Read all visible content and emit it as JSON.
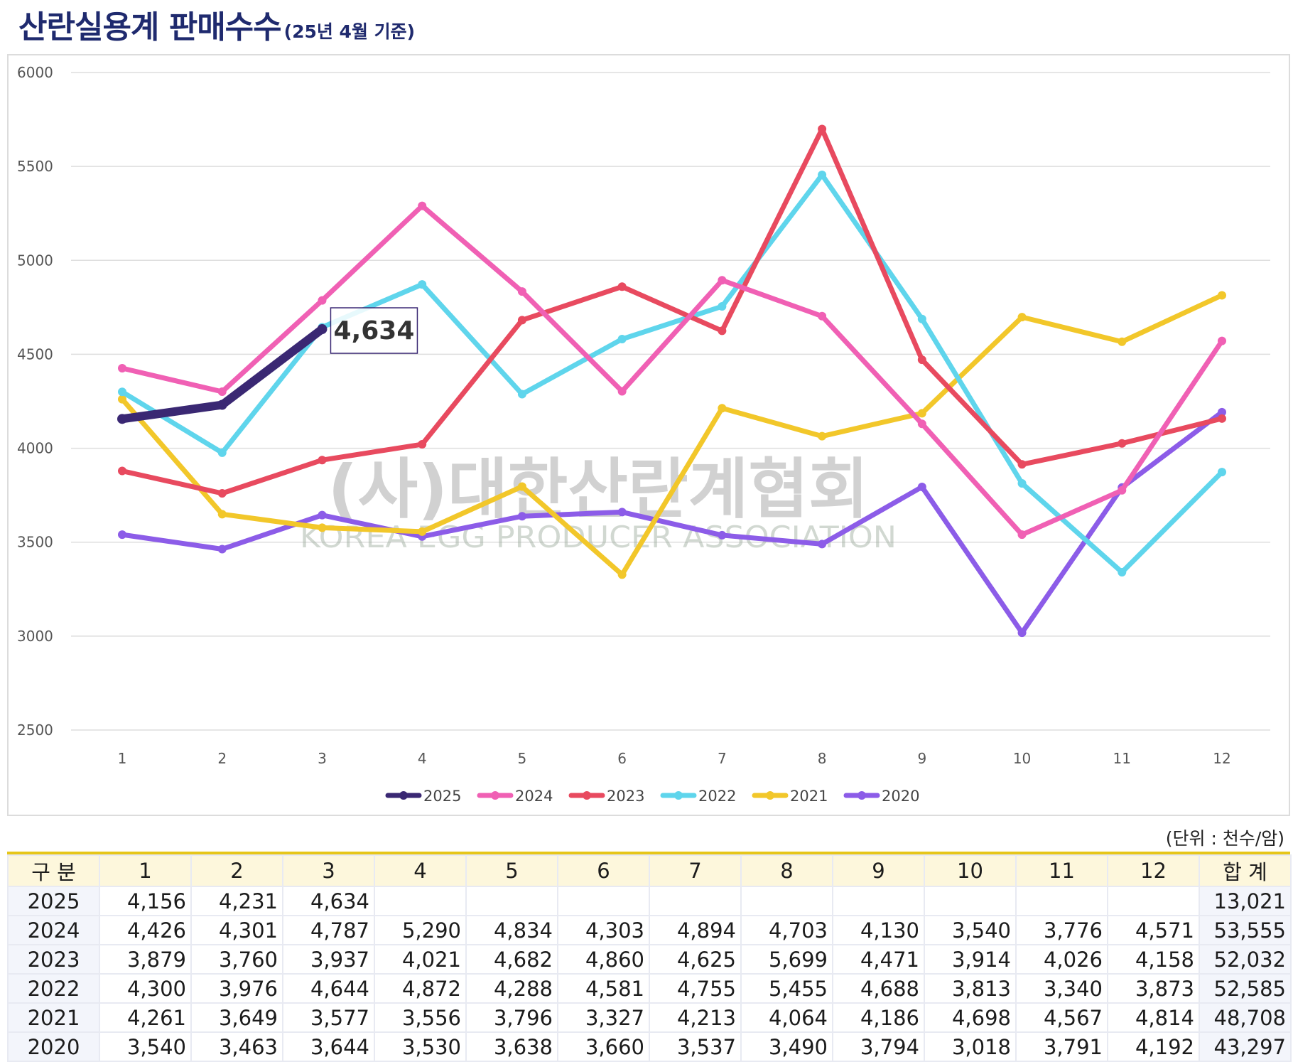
{
  "header": {
    "title": "산란실용계 판매수수",
    "subtitle": "(25년 4월 기준)"
  },
  "chart_data": {
    "type": "line",
    "title": "",
    "xlabel": "",
    "ylabel": "",
    "categories": [
      "1",
      "2",
      "3",
      "4",
      "5",
      "6",
      "7",
      "8",
      "9",
      "10",
      "11",
      "12"
    ],
    "ylim": [
      2500,
      6000
    ],
    "yticks": [
      2500,
      3000,
      3500,
      4000,
      4500,
      5000,
      5500,
      6000
    ],
    "grid": true,
    "legend_position": "bottom",
    "series": [
      {
        "name": "2025",
        "color": "#3a2873",
        "values": [
          4156,
          4231,
          4634,
          null,
          null,
          null,
          null,
          null,
          null,
          null,
          null,
          null
        ]
      },
      {
        "name": "2024",
        "color": "#f060b4",
        "values": [
          4426,
          4301,
          4787,
          5290,
          4834,
          4303,
          4894,
          4703,
          4130,
          3540,
          3776,
          4571
        ]
      },
      {
        "name": "2023",
        "color": "#e84a5f",
        "values": [
          3879,
          3760,
          3937,
          4021,
          4682,
          4860,
          4625,
          5699,
          4471,
          3914,
          4026,
          4158
        ]
      },
      {
        "name": "2022",
        "color": "#5fd5ec",
        "values": [
          4300,
          3976,
          4644,
          4872,
          4288,
          4581,
          4755,
          5455,
          4688,
          3813,
          3340,
          3873
        ]
      },
      {
        "name": "2021",
        "color": "#f2c72a",
        "values": [
          4261,
          3649,
          3577,
          3556,
          3796,
          3327,
          4213,
          4064,
          4186,
          4698,
          4567,
          4814
        ]
      },
      {
        "name": "2020",
        "color": "#8c5ce8",
        "values": [
          3540,
          3463,
          3644,
          3530,
          3638,
          3660,
          3537,
          3490,
          3794,
          3018,
          3791,
          4192
        ]
      }
    ],
    "annotation": {
      "series": "2025",
      "index": 2,
      "label": "4,634"
    },
    "watermark": {
      "text": "(사)대한산란계협회",
      "subtext": "KOREA EGG PRODUCER ASSOCIATION"
    }
  },
  "table": {
    "unit_note": "(단위 : 천수/암)",
    "headers": [
      "구 분",
      "1",
      "2",
      "3",
      "4",
      "5",
      "6",
      "7",
      "8",
      "9",
      "10",
      "11",
      "12",
      "합 계"
    ],
    "rows": [
      {
        "year": "2025",
        "values": [
          "4,156",
          "4,231",
          "4,634",
          "",
          "",
          "",
          "",
          "",
          "",
          "",
          "",
          ""
        ],
        "total": "13,021"
      },
      {
        "year": "2024",
        "values": [
          "4,426",
          "4,301",
          "4,787",
          "5,290",
          "4,834",
          "4,303",
          "4,894",
          "4,703",
          "4,130",
          "3,540",
          "3,776",
          "4,571"
        ],
        "total": "53,555"
      },
      {
        "year": "2023",
        "values": [
          "3,879",
          "3,760",
          "3,937",
          "4,021",
          "4,682",
          "4,860",
          "4,625",
          "5,699",
          "4,471",
          "3,914",
          "4,026",
          "4,158"
        ],
        "total": "52,032"
      },
      {
        "year": "2022",
        "values": [
          "4,300",
          "3,976",
          "4,644",
          "4,872",
          "4,288",
          "4,581",
          "4,755",
          "5,455",
          "4,688",
          "3,813",
          "3,340",
          "3,873"
        ],
        "total": "52,585"
      },
      {
        "year": "2021",
        "values": [
          "4,261",
          "3,649",
          "3,577",
          "3,556",
          "3,796",
          "3,327",
          "4,213",
          "4,064",
          "4,186",
          "4,698",
          "4,567",
          "4,814"
        ],
        "total": "48,708"
      },
      {
        "year": "2020",
        "values": [
          "3,540",
          "3,463",
          "3,644",
          "3,530",
          "3,638",
          "3,660",
          "3,537",
          "3,490",
          "3,794",
          "3,018",
          "3,791",
          "4,192"
        ],
        "total": "43,297"
      }
    ]
  }
}
